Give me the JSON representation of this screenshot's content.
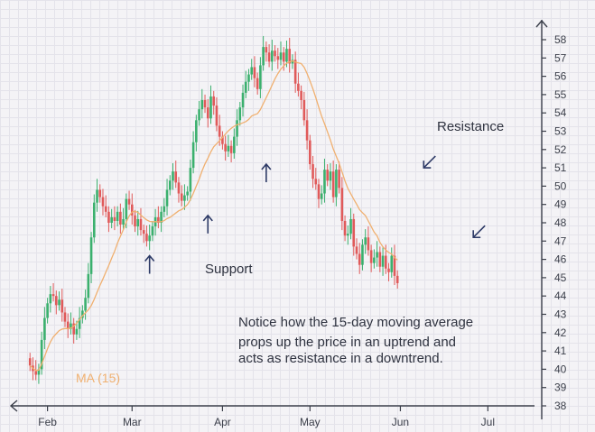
{
  "chart_data": {
    "type": "candlestick",
    "title": "",
    "xlabel": "",
    "ylabel": "",
    "ylim": [
      38,
      59
    ],
    "y_ticks": [
      38,
      39,
      40,
      41,
      42,
      43,
      44,
      45,
      46,
      47,
      48,
      49,
      50,
      51,
      52,
      53,
      54,
      55,
      56,
      57,
      58
    ],
    "x_ticks": [
      {
        "label": "Feb",
        "day": 7
      },
      {
        "label": "Mar",
        "day": 36
      },
      {
        "label": "Apr",
        "day": 67
      },
      {
        "label": "May",
        "day": 97
      },
      {
        "label": "Jun",
        "day": 128
      },
      {
        "label": "Jul",
        "day": 158
      }
    ],
    "grid": true,
    "up_color": "#3bb06e",
    "down_color": "#e05a5a",
    "ma_color": "#f0b070",
    "axis_color": "#3b3f4a",
    "arrow_color": "#2d3a66",
    "ma_label": "MA (15)",
    "annotations": {
      "support": "Support",
      "resistance": "Resistance",
      "note": [
        "Notice how the 15-day moving average",
        "props up the price in an uptrend and",
        "acts as resistance in a downtrend."
      ]
    },
    "support_arrows": [
      {
        "day": 42,
        "value": 46.2
      },
      {
        "day": 62,
        "value": 48.4
      },
      {
        "day": 82,
        "value": 51.2
      }
    ],
    "resistance_arrows": [
      {
        "day": 136,
        "value": 51.0
      },
      {
        "day": 153,
        "value": 47.2
      }
    ],
    "series_points": [
      [
        1,
        40.2
      ],
      [
        2,
        39.9
      ],
      [
        3,
        39.7
      ],
      [
        4,
        40.0
      ],
      [
        5,
        41.6
      ],
      [
        6,
        42.8
      ],
      [
        7,
        43.6
      ],
      [
        8,
        44.1
      ],
      [
        9,
        44.0
      ],
      [
        10,
        43.5
      ],
      [
        11,
        43.8
      ],
      [
        12,
        43.1
      ],
      [
        13,
        42.6
      ],
      [
        14,
        42.2
      ],
      [
        15,
        42.5
      ],
      [
        16,
        41.9
      ],
      [
        17,
        42.2
      ],
      [
        18,
        42.8
      ],
      [
        19,
        43.2
      ],
      [
        20,
        43.9
      ],
      [
        21,
        45.2
      ],
      [
        22,
        47.2
      ],
      [
        23,
        49.1
      ],
      [
        24,
        49.8
      ],
      [
        25,
        49.4
      ],
      [
        26,
        48.9
      ],
      [
        27,
        48.6
      ],
      [
        28,
        48.0
      ],
      [
        29,
        48.3
      ],
      [
        30,
        48.1
      ],
      [
        31,
        48.6
      ],
      [
        32,
        47.9
      ],
      [
        33,
        48.2
      ],
      [
        34,
        49.3
      ],
      [
        35,
        49.0
      ],
      [
        36,
        48.4
      ],
      [
        37,
        47.8
      ],
      [
        38,
        48.2
      ],
      [
        39,
        47.6
      ],
      [
        40,
        47.4
      ],
      [
        41,
        47.0
      ],
      [
        42,
        47.3
      ],
      [
        43,
        47.8
      ],
      [
        44,
        48.3
      ],
      [
        45,
        48.0
      ],
      [
        46,
        48.6
      ],
      [
        47,
        48.9
      ],
      [
        48,
        49.8
      ],
      [
        49,
        50.3
      ],
      [
        50,
        50.8
      ],
      [
        51,
        50.2
      ],
      [
        52,
        49.6
      ],
      [
        53,
        49.2
      ],
      [
        54,
        49.5
      ],
      [
        55,
        49.7
      ],
      [
        56,
        51.0
      ],
      [
        57,
        52.4
      ],
      [
        58,
        53.6
      ],
      [
        59,
        54.2
      ],
      [
        60,
        54.7
      ],
      [
        61,
        54.3
      ],
      [
        62,
        53.7
      ],
      [
        63,
        54.9
      ],
      [
        64,
        54.4
      ],
      [
        65,
        53.3
      ],
      [
        66,
        52.7
      ],
      [
        67,
        52.3
      ],
      [
        68,
        51.9
      ],
      [
        69,
        52.2
      ],
      [
        70,
        51.8
      ],
      [
        71,
        52.7
      ],
      [
        72,
        53.6
      ],
      [
        73,
        54.3
      ],
      [
        74,
        55.1
      ],
      [
        75,
        55.7
      ],
      [
        76,
        56.1
      ],
      [
        77,
        56.5
      ],
      [
        78,
        55.9
      ],
      [
        79,
        55.3
      ],
      [
        80,
        56.6
      ],
      [
        81,
        57.6
      ],
      [
        82,
        57.3
      ],
      [
        83,
        56.8
      ],
      [
        84,
        57.4
      ],
      [
        85,
        57.1
      ],
      [
        86,
        56.9
      ],
      [
        87,
        57.3
      ],
      [
        88,
        56.8
      ],
      [
        89,
        57.5
      ],
      [
        90,
        56.7
      ],
      [
        91,
        56.9
      ],
      [
        92,
        55.6
      ],
      [
        93,
        55.2
      ],
      [
        94,
        54.7
      ],
      [
        95,
        53.6
      ],
      [
        96,
        52.5
      ],
      [
        97,
        51.2
      ],
      [
        98,
        50.4
      ],
      [
        99,
        50.1
      ],
      [
        100,
        49.3
      ],
      [
        101,
        49.6
      ],
      [
        102,
        50.9
      ],
      [
        103,
        50.3
      ],
      [
        104,
        50.8
      ],
      [
        105,
        49.4
      ],
      [
        106,
        50.9
      ],
      [
        107,
        49.9
      ],
      [
        108,
        48.1
      ],
      [
        109,
        47.3
      ],
      [
        110,
        47.4
      ],
      [
        111,
        48.2
      ],
      [
        112,
        46.7
      ],
      [
        113,
        46.3
      ],
      [
        114,
        45.7
      ],
      [
        115,
        46.8
      ],
      [
        116,
        47.2
      ],
      [
        117,
        46.5
      ],
      [
        118,
        45.8
      ],
      [
        119,
        46.1
      ],
      [
        120,
        46.4
      ],
      [
        121,
        45.6
      ],
      [
        122,
        46.2
      ],
      [
        123,
        45.5
      ],
      [
        124,
        45.3
      ],
      [
        125,
        46.2
      ],
      [
        126,
        45.1
      ],
      [
        127,
        44.7
      ]
    ]
  }
}
